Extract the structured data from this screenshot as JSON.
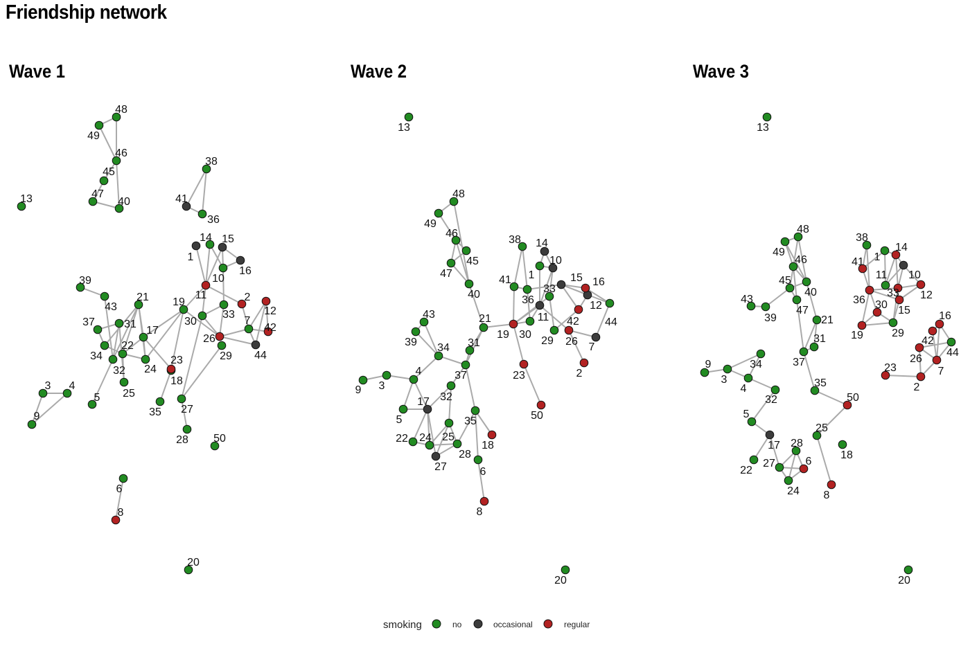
{
  "title": "Friendship network",
  "colors": {
    "no": "#228B22",
    "occasional": "#3C3C3C",
    "regular": "#B22222",
    "edge": "#AAAAAA"
  },
  "legend": {
    "title": "smoking",
    "items": [
      {
        "key": "no",
        "label": "no"
      },
      {
        "key": "occasional",
        "label": "occasional"
      },
      {
        "key": "regular",
        "label": "regular"
      }
    ]
  },
  "waves": [
    {
      "title": "Wave 1",
      "smoking": {
        "no": [
          13,
          48,
          49,
          46,
          45,
          47,
          40,
          38,
          36,
          14,
          10,
          33,
          19,
          30,
          7,
          29,
          39,
          43,
          21,
          37,
          31,
          17,
          34,
          22,
          32,
          24,
          18,
          25,
          5,
          35,
          27,
          28,
          50,
          3,
          4,
          9,
          6,
          20
        ],
        "occasional": [
          41,
          1,
          15,
          16,
          44
        ],
        "regular": [
          11,
          2,
          12,
          42,
          26,
          23,
          8
        ]
      },
      "edges": [
        [
          48,
          49
        ],
        [
          49,
          46
        ],
        [
          48,
          46
        ],
        [
          46,
          45
        ],
        [
          46,
          40
        ],
        [
          45,
          47
        ],
        [
          47,
          40
        ],
        [
          38,
          41
        ],
        [
          38,
          36
        ],
        [
          41,
          36
        ],
        [
          1,
          11
        ],
        [
          14,
          11
        ],
        [
          14,
          10
        ],
        [
          15,
          10
        ],
        [
          15,
          16
        ],
        [
          16,
          10
        ],
        [
          10,
          33
        ],
        [
          15,
          11
        ],
        [
          11,
          2
        ],
        [
          2,
          7
        ],
        [
          11,
          19
        ],
        [
          11,
          30
        ],
        [
          30,
          33
        ],
        [
          30,
          26
        ],
        [
          19,
          26
        ],
        [
          33,
          26
        ],
        [
          26,
          7
        ],
        [
          26,
          44
        ],
        [
          7,
          42
        ],
        [
          7,
          44
        ],
        [
          7,
          12
        ],
        [
          12,
          44
        ],
        [
          12,
          42
        ],
        [
          29,
          27
        ],
        [
          30,
          27
        ],
        [
          19,
          23
        ],
        [
          19,
          24
        ],
        [
          19,
          17
        ],
        [
          23,
          18
        ],
        [
          18,
          35
        ],
        [
          17,
          24
        ],
        [
          17,
          23
        ],
        [
          21,
          17
        ],
        [
          21,
          24
        ],
        [
          21,
          32
        ],
        [
          21,
          22
        ],
        [
          21,
          34
        ],
        [
          39,
          43
        ],
        [
          43,
          32
        ],
        [
          37,
          31
        ],
        [
          37,
          34
        ],
        [
          34,
          22
        ],
        [
          31,
          32
        ],
        [
          31,
          25
        ],
        [
          22,
          24
        ],
        [
          32,
          5
        ],
        [
          27,
          28
        ],
        [
          3,
          4
        ],
        [
          3,
          9
        ],
        [
          9,
          4
        ],
        [
          6,
          8
        ],
        [
          17,
          22
        ],
        [
          22,
          25
        ]
      ]
    },
    {
      "title": "Wave 2",
      "smoking": {
        "no": [
          13,
          48,
          49,
          46,
          45,
          47,
          40,
          38,
          1,
          41,
          36,
          33,
          44,
          21,
          30,
          29,
          43,
          39,
          34,
          31,
          37,
          4,
          3,
          9,
          32,
          5,
          25,
          35,
          22,
          24,
          28,
          6,
          20
        ],
        "occasional": [
          14,
          10,
          15,
          12,
          11,
          7,
          17,
          27
        ],
        "regular": [
          16,
          42,
          19,
          26,
          2,
          23,
          50,
          18,
          8
        ]
      },
      "edges": [
        [
          48,
          49
        ],
        [
          48,
          40
        ],
        [
          49,
          46
        ],
        [
          46,
          45
        ],
        [
          46,
          47
        ],
        [
          46,
          40
        ],
        [
          45,
          47
        ],
        [
          47,
          40
        ],
        [
          40,
          21
        ],
        [
          21,
          19
        ],
        [
          21,
          31
        ],
        [
          21,
          37
        ],
        [
          31,
          37
        ],
        [
          38,
          41
        ],
        [
          38,
          36
        ],
        [
          14,
          1
        ],
        [
          14,
          10
        ],
        [
          1,
          10
        ],
        [
          1,
          11
        ],
        [
          10,
          11
        ],
        [
          10,
          33
        ],
        [
          41,
          19
        ],
        [
          41,
          36
        ],
        [
          36,
          30
        ],
        [
          36,
          15
        ],
        [
          19,
          11
        ],
        [
          19,
          30
        ],
        [
          19,
          33
        ],
        [
          11,
          30
        ],
        [
          11,
          26
        ],
        [
          33,
          29
        ],
        [
          15,
          16
        ],
        [
          15,
          12
        ],
        [
          15,
          42
        ],
        [
          15,
          44
        ],
        [
          16,
          44
        ],
        [
          12,
          42
        ],
        [
          42,
          29
        ],
        [
          26,
          7
        ],
        [
          26,
          2
        ],
        [
          7,
          44
        ],
        [
          19,
          23
        ],
        [
          23,
          50
        ],
        [
          43,
          39
        ],
        [
          43,
          34
        ],
        [
          39,
          34
        ],
        [
          34,
          37
        ],
        [
          37,
          32
        ],
        [
          37,
          35
        ],
        [
          4,
          34
        ],
        [
          4,
          3
        ],
        [
          3,
          9
        ],
        [
          4,
          5
        ],
        [
          4,
          17
        ],
        [
          5,
          17
        ],
        [
          17,
          32
        ],
        [
          17,
          22
        ],
        [
          17,
          24
        ],
        [
          17,
          27
        ],
        [
          32,
          25
        ],
        [
          25,
          24
        ],
        [
          25,
          27
        ],
        [
          25,
          28
        ],
        [
          35,
          28
        ],
        [
          35,
          18
        ],
        [
          35,
          6
        ],
        [
          6,
          8
        ],
        [
          22,
          24
        ],
        [
          24,
          28
        ],
        [
          27,
          28
        ]
      ]
    },
    {
      "title": "Wave 3",
      "smoking": {
        "no": [
          13,
          48,
          49,
          46,
          40,
          45,
          47,
          43,
          39,
          21,
          31,
          37,
          38,
          1,
          11,
          29,
          44,
          34,
          9,
          3,
          4,
          32,
          35,
          5,
          25,
          18,
          28,
          27,
          22,
          24,
          20
        ],
        "occasional": [
          10,
          17
        ],
        "regular": [
          14,
          41,
          33,
          12,
          36,
          15,
          30,
          19,
          16,
          42,
          26,
          7,
          23,
          2,
          50,
          6,
          8
        ]
      },
      "edges": [
        [
          48,
          49
        ],
        [
          49,
          46
        ],
        [
          49,
          40
        ],
        [
          48,
          46
        ],
        [
          48,
          40
        ],
        [
          46,
          45
        ],
        [
          46,
          40
        ],
        [
          46,
          47
        ],
        [
          45,
          40
        ],
        [
          45,
          47
        ],
        [
          45,
          39
        ],
        [
          43,
          39
        ],
        [
          40,
          21
        ],
        [
          47,
          37
        ],
        [
          21,
          37
        ],
        [
          21,
          31
        ],
        [
          37,
          31
        ],
        [
          37,
          35
        ],
        [
          35,
          50
        ],
        [
          50,
          25
        ],
        [
          25,
          8
        ],
        [
          9,
          3
        ],
        [
          3,
          34
        ],
        [
          3,
          4
        ],
        [
          4,
          34
        ],
        [
          4,
          32
        ],
        [
          32,
          5
        ],
        [
          5,
          17
        ],
        [
          17,
          22
        ],
        [
          17,
          27
        ],
        [
          27,
          28
        ],
        [
          27,
          6
        ],
        [
          27,
          24
        ],
        [
          28,
          24
        ],
        [
          28,
          6
        ],
        [
          6,
          24
        ],
        [
          38,
          41
        ],
        [
          38,
          36
        ],
        [
          41,
          1
        ],
        [
          41,
          36
        ],
        [
          1,
          11
        ],
        [
          1,
          14
        ],
        [
          14,
          10
        ],
        [
          14,
          11
        ],
        [
          14,
          33
        ],
        [
          10,
          11
        ],
        [
          10,
          33
        ],
        [
          10,
          12
        ],
        [
          33,
          12
        ],
        [
          36,
          33
        ],
        [
          36,
          15
        ],
        [
          36,
          30
        ],
        [
          36,
          19
        ],
        [
          12,
          15
        ],
        [
          15,
          29
        ],
        [
          33,
          29
        ],
        [
          19,
          30
        ],
        [
          19,
          29
        ],
        [
          30,
          29
        ],
        [
          16,
          42
        ],
        [
          16,
          44
        ],
        [
          16,
          7
        ],
        [
          42,
          7
        ],
        [
          26,
          44
        ],
        [
          26,
          7
        ],
        [
          26,
          2
        ],
        [
          7,
          2
        ],
        [
          7,
          44
        ],
        [
          23,
          2
        ]
      ]
    }
  ]
}
